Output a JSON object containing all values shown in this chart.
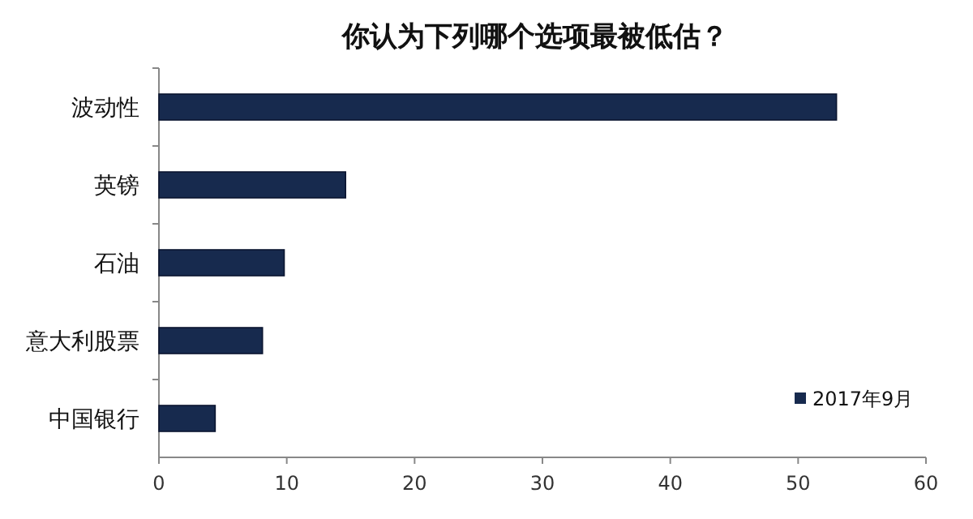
{
  "chart_data": {
    "type": "bar",
    "orientation": "horizontal",
    "title": "你认为下列哪个选项最被低估？",
    "categories": [
      "波动性",
      "英镑",
      "石油",
      "意大利股票",
      "中国银行"
    ],
    "series": [
      {
        "name": "2017年9月",
        "color": "#172a4e",
        "values": [
          53,
          14.6,
          9.8,
          8.1,
          4.4
        ]
      }
    ],
    "xlim": [
      0,
      60
    ],
    "xticks": [
      0,
      10,
      20,
      30,
      40,
      50,
      60
    ],
    "legend": "bottom right"
  }
}
